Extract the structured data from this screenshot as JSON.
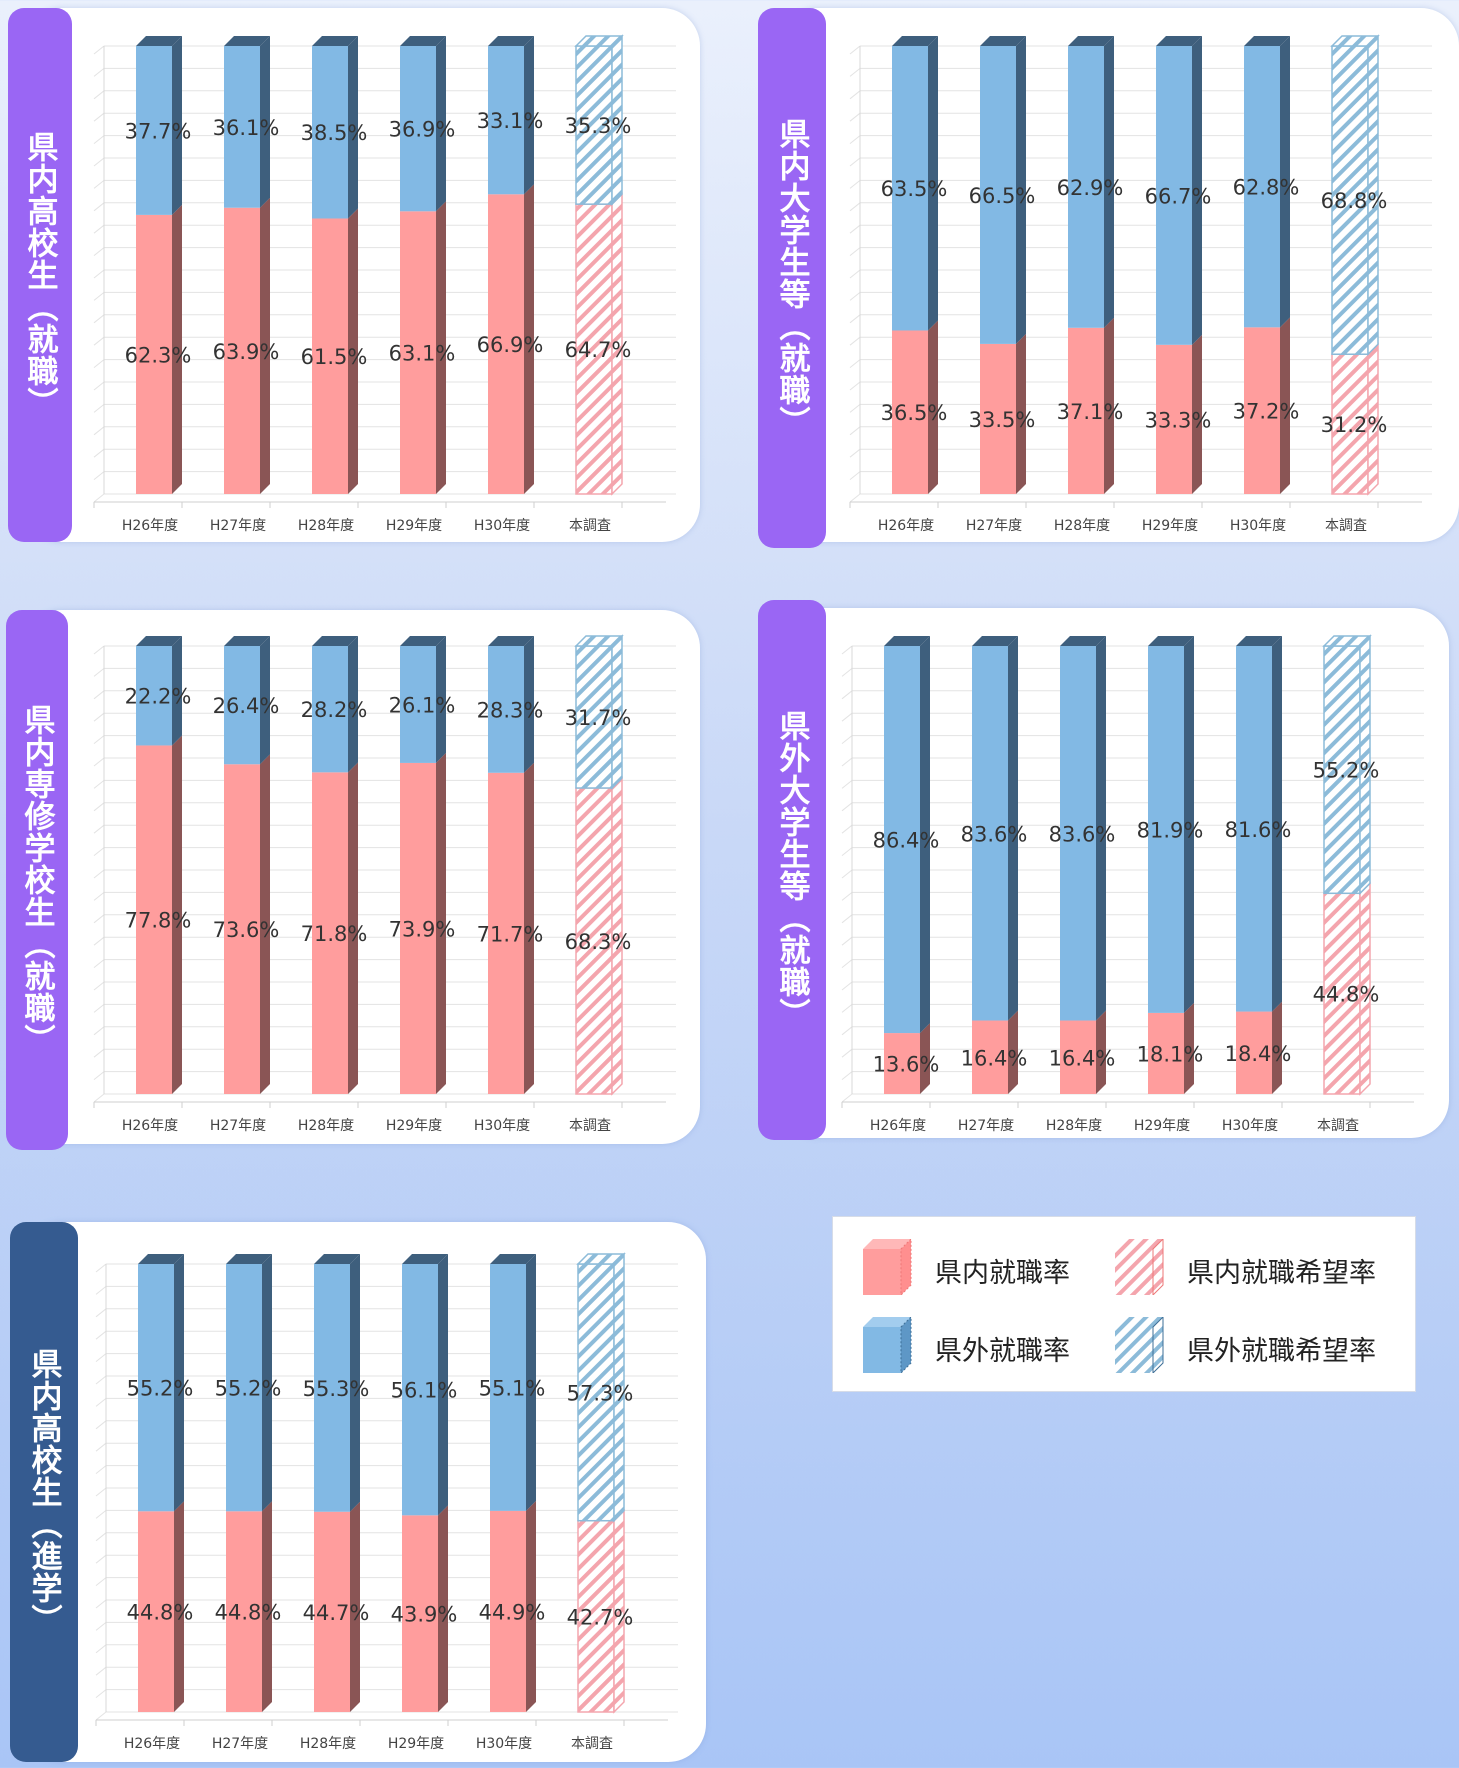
{
  "colors": {
    "in_front": "#ff9d9d",
    "in_side": "#8a5555",
    "out_front": "#82b9e4",
    "out_side": "#3e5f7d",
    "hatch_red": "#f4a5ad",
    "hatch_blue": "#8cbbd9",
    "tab_purple": "#9a66f4",
    "tab_navy": "#355b90"
  },
  "legend": {
    "in_rate": "県内就職率",
    "in_hope": "県内就職希望率",
    "out_rate": "県外就職率",
    "out_hope": "県外就職希望率"
  },
  "panels": [
    {
      "tab_label": "県内高校生（就職）"
    },
    {
      "tab_label": "県内大学生等（就職）"
    },
    {
      "tab_label": "県内専修学校生（就職）"
    },
    {
      "tab_label": "県外大学生等（就職）"
    },
    {
      "tab_label": "県内高校生（進学）"
    }
  ],
  "chart_data": [
    {
      "type": "bar",
      "stacked": true,
      "categories": [
        "H26年度",
        "H27年度",
        "H28年度",
        "H29年度",
        "H30年度",
        "本調査"
      ],
      "ylim": [
        0,
        100
      ],
      "grid": true,
      "series": [
        {
          "name": "県内就職率",
          "values": [
            62.3,
            63.9,
            61.5,
            63.1,
            66.9,
            64.7
          ],
          "labels": [
            "62.3%",
            "63.9%",
            "61.5%",
            "63.1%",
            "66.9%",
            "64.7%"
          ]
        },
        {
          "name": "県外就職率",
          "values": [
            37.7,
            36.1,
            38.5,
            36.9,
            33.1,
            35.3
          ],
          "labels": [
            "37.7%",
            "36.1%",
            "38.5%",
            "36.9%",
            "33.1%",
            "35.3%"
          ]
        }
      ]
    },
    {
      "type": "bar",
      "stacked": true,
      "categories": [
        "H26年度",
        "H27年度",
        "H28年度",
        "H29年度",
        "H30年度",
        "本調査"
      ],
      "ylim": [
        0,
        100
      ],
      "grid": true,
      "series": [
        {
          "name": "県内就職率",
          "values": [
            36.5,
            33.5,
            37.1,
            33.3,
            37.2,
            31.2
          ],
          "labels": [
            "36.5%",
            "33.5%",
            "37.1%",
            "33.3%",
            "37.2%",
            "31.2%"
          ]
        },
        {
          "name": "県外就職率",
          "values": [
            63.5,
            66.5,
            62.9,
            66.7,
            62.8,
            68.8
          ],
          "labels": [
            "63.5%",
            "66.5%",
            "62.9%",
            "66.7%",
            "62.8%",
            "68.8%"
          ]
        }
      ]
    },
    {
      "type": "bar",
      "stacked": true,
      "categories": [
        "H26年度",
        "H27年度",
        "H28年度",
        "H29年度",
        "H30年度",
        "本調査"
      ],
      "ylim": [
        0,
        100
      ],
      "grid": true,
      "series": [
        {
          "name": "県内就職率",
          "values": [
            77.8,
            73.6,
            71.8,
            73.9,
            71.7,
            68.3
          ],
          "labels": [
            "77.8%",
            "73.6%",
            "71.8%",
            "73.9%",
            "71.7%",
            "68.3%"
          ]
        },
        {
          "name": "県外就職率",
          "values": [
            22.2,
            26.4,
            28.2,
            26.1,
            28.3,
            31.7
          ],
          "labels": [
            "22.2%",
            "26.4%",
            "28.2%",
            "26.1%",
            "28.3%",
            "31.7%"
          ]
        }
      ]
    },
    {
      "type": "bar",
      "stacked": true,
      "categories": [
        "H26年度",
        "H27年度",
        "H28年度",
        "H29年度",
        "H30年度",
        "本調査"
      ],
      "ylim": [
        0,
        100
      ],
      "grid": true,
      "series": [
        {
          "name": "県内就職率",
          "values": [
            13.6,
            16.4,
            16.4,
            18.1,
            18.4,
            44.8
          ],
          "labels": [
            "13.6%",
            "16.4%",
            "16.4%",
            "18.1%",
            "18.4%",
            "44.8%"
          ]
        },
        {
          "name": "県外就職率",
          "values": [
            86.4,
            83.6,
            83.6,
            81.9,
            81.6,
            55.2
          ],
          "labels": [
            "86.4%",
            "83.6%",
            "83.6%",
            "81.9%",
            "81.6%",
            "55.2%"
          ]
        }
      ]
    },
    {
      "type": "bar",
      "stacked": true,
      "categories": [
        "H26年度",
        "H27年度",
        "H28年度",
        "H29年度",
        "H30年度",
        "本調査"
      ],
      "ylim": [
        0,
        100
      ],
      "grid": true,
      "series": [
        {
          "name": "県内就職率",
          "values": [
            44.8,
            44.8,
            44.7,
            43.9,
            44.9,
            42.7
          ],
          "labels": [
            "44.8%",
            "44.8%",
            "44.7%",
            "43.9%",
            "44.9%",
            "42.7%"
          ]
        },
        {
          "name": "県外就職率",
          "values": [
            55.2,
            55.2,
            55.3,
            56.1,
            55.1,
            57.3
          ],
          "labels": [
            "55.2%",
            "55.2%",
            "55.3%",
            "56.1%",
            "55.1%",
            "57.3%"
          ]
        }
      ]
    }
  ]
}
